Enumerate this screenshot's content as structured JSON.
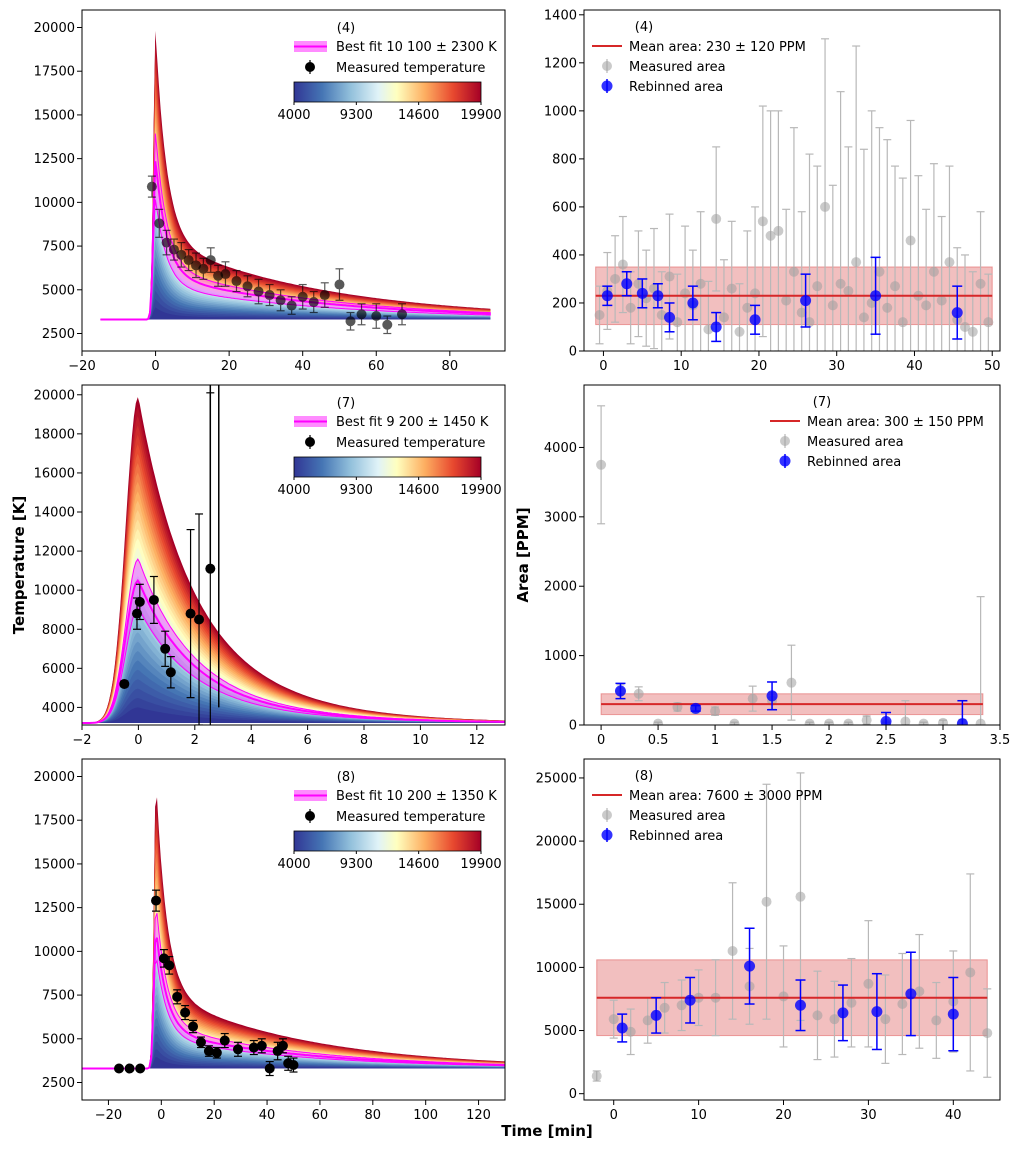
{
  "figure": {
    "shared_xlabel": "Time [min]",
    "left_ylabel": "Temperature [K]",
    "right_ylabel": "Area [PPM]",
    "colorbar": {
      "ticks": [
        "4000",
        "9300",
        "14600",
        "19900"
      ]
    }
  },
  "colors": {
    "magenta": "#ff00ff",
    "mean_line": "#d62728",
    "band": "#e88a8a",
    "measured_area": "#9e9e9e",
    "rebinned": "#0000ff",
    "errbar_gray": "#b8b8b8"
  },
  "chart_data": [
    {
      "id": "temp4",
      "type": "scatter",
      "panel_label": "(4)",
      "legend": {
        "fit": "Best fit 10 100 ± 2300 K",
        "measured": "Measured temperature"
      },
      "xlim": [
        -20,
        95
      ],
      "ylim": [
        1500,
        21000
      ],
      "xticks": [
        -20,
        0,
        20,
        40,
        60,
        80
      ],
      "yticks": [
        2500,
        5000,
        7500,
        10000,
        12500,
        15000,
        17500,
        20000
      ],
      "model": {
        "t0": 0,
        "t_start": -15,
        "t_end": 91,
        "base": 3300,
        "peak_max": 19900,
        "peak_min": 4000,
        "rise": 0.6,
        "tau1": 3,
        "tau2": 45,
        "frac": 0.28,
        "fit_peak": 12400,
        "fit_hi": 14000,
        "fit_lo": 10200
      },
      "points": {
        "x": [
          -1,
          1,
          3,
          5,
          7,
          9,
          11,
          13,
          15,
          17,
          19,
          22,
          25,
          28,
          31,
          34,
          37,
          40,
          43,
          46,
          50,
          53,
          56,
          60,
          63,
          67
        ],
        "y": [
          10900,
          8800,
          7700,
          7300,
          7000,
          6700,
          6400,
          6200,
          6700,
          5800,
          5900,
          5500,
          5200,
          4900,
          4700,
          4400,
          4100,
          4600,
          4300,
          4700,
          5300,
          3200,
          3600,
          3500,
          3000,
          3600
        ],
        "err": [
          600,
          800,
          700,
          600,
          700,
          600,
          700,
          600,
          700,
          600,
          700,
          600,
          600,
          700,
          600,
          600,
          500,
          700,
          600,
          700,
          900,
          500,
          600,
          700,
          500,
          600
        ]
      },
      "opacity": 0.65
    },
    {
      "id": "area4",
      "type": "scatter",
      "panel_label": "(4)",
      "legend": {
        "mean": "Mean area: 230 ± 120 PPM",
        "measured": "Measured area",
        "rebinned": "Rebinned area"
      },
      "xlim": [
        -2.5,
        51
      ],
      "ylim": [
        0,
        1420
      ],
      "xticks": [
        0,
        10,
        20,
        30,
        40,
        50
      ],
      "yticks": [
        0,
        200,
        400,
        600,
        800,
        1000,
        1200,
        1400
      ],
      "mean": 230,
      "band": [
        110,
        350
      ],
      "mean_x": [
        -1,
        50
      ],
      "measured": {
        "x": [
          -0.5,
          0.5,
          1.5,
          2.5,
          3.5,
          4.5,
          5.5,
          6.5,
          7.5,
          8.5,
          9.5,
          10.5,
          11.5,
          12.5,
          13.5,
          14.5,
          15.5,
          16.5,
          17.5,
          18.5,
          19.5,
          20.5,
          21.5,
          22.5,
          23.5,
          24.5,
          25.5,
          26.5,
          27.5,
          28.5,
          29.5,
          30.5,
          31.5,
          32.5,
          33.5,
          34.5,
          35.5,
          36.5,
          37.5,
          38.5,
          39.5,
          40.5,
          41.5,
          42.5,
          43.5,
          44.5,
          45.5,
          46.5,
          47.5,
          48.5,
          49.5
        ],
        "y": [
          150,
          250,
          300,
          360,
          180,
          280,
          220,
          260,
          150,
          310,
          120,
          240,
          190,
          280,
          90,
          550,
          140,
          260,
          80,
          180,
          240,
          540,
          480,
          500,
          210,
          330,
          160,
          120,
          270,
          600,
          190,
          280,
          250,
          370,
          140,
          200,
          330,
          180,
          270,
          120,
          460,
          230,
          190,
          330,
          210,
          370,
          130,
          100,
          80,
          280,
          120
        ],
        "err": [
          120,
          160,
          180,
          200,
          150,
          220,
          200,
          250,
          180,
          260,
          200,
          280,
          230,
          300,
          200,
          300,
          240,
          280,
          200,
          320,
          360,
          480,
          520,
          500,
          380,
          600,
          420,
          700,
          500,
          700,
          500,
          800,
          600,
          900,
          700,
          800,
          600,
          700,
          500,
          600,
          500,
          500,
          400,
          450,
          350,
          400,
          300,
          300,
          250,
          300,
          200
        ]
      },
      "rebinned": {
        "x": [
          0.5,
          3,
          5,
          7,
          8.5,
          11.5,
          14.5,
          19.5,
          26,
          35,
          45.5
        ],
        "y": [
          230,
          280,
          240,
          230,
          140,
          200,
          100,
          130,
          210,
          230,
          160
        ],
        "err": [
          40,
          50,
          60,
          50,
          60,
          70,
          60,
          60,
          110,
          160,
          110
        ]
      }
    },
    {
      "id": "temp7",
      "type": "scatter",
      "panel_label": "(7)",
      "legend": {
        "fit": "Best fit 9 200 ± 1450 K",
        "measured": "Measured temperature"
      },
      "xlim": [
        -2,
        13
      ],
      "ylim": [
        3100,
        20500
      ],
      "xticks": [
        -2,
        0,
        2,
        4,
        6,
        8,
        10,
        12
      ],
      "yticks": [
        4000,
        6000,
        8000,
        10000,
        12000,
        14000,
        16000,
        18000,
        20000
      ],
      "model": {
        "t0": 0,
        "t_start": -2,
        "t_end": 13,
        "base": 3200,
        "peak_max": 19900,
        "peak_min": 4000,
        "rise": 0.45,
        "tau1": 1.6,
        "tau2": 3.2,
        "frac": 0.45,
        "fit_peak": 10500,
        "fit_hi": 11600,
        "fit_lo": 9100
      },
      "points": {
        "x": [
          -0.5,
          -0.05,
          0.05,
          0.55,
          0.95,
          1.15,
          1.85,
          2.15,
          2.55
        ],
        "y": [
          5200,
          8800,
          9400,
          9500,
          7000,
          5800,
          8800,
          8500,
          11100
        ],
        "err": [
          150,
          800,
          900,
          1200,
          900,
          800,
          4300,
          5400,
          9000
        ]
      },
      "big_errbar": {
        "x": [
          2.55,
          2.85
        ],
        "y": [
          11100,
          4000
        ]
      },
      "opacity": 1
    },
    {
      "id": "area7",
      "type": "scatter",
      "panel_label": "(7)",
      "legend": {
        "mean": "Mean area: 300 ± 150 PPM",
        "measured": "Measured area",
        "rebinned": "Rebinned area"
      },
      "xlim": [
        -0.15,
        3.5
      ],
      "ylim": [
        0,
        4900
      ],
      "xticks": [
        0.0,
        0.5,
        1.0,
        1.5,
        2.0,
        2.5,
        3.0,
        3.5
      ],
      "yticks": [
        0,
        1000,
        2000,
        3000,
        4000
      ],
      "mean": 300,
      "band": [
        150,
        450
      ],
      "mean_x": [
        0,
        3.35
      ],
      "measured": {
        "x": [
          0,
          0.17,
          0.33,
          0.5,
          0.67,
          0.83,
          1.0,
          1.17,
          1.33,
          1.5,
          1.67,
          1.83,
          2.0,
          2.17,
          2.33,
          2.5,
          2.67,
          2.83,
          3.0,
          3.17,
          3.33
        ],
        "y": [
          3750,
          480,
          450,
          20,
          260,
          230,
          200,
          20,
          380,
          350,
          610,
          20,
          20,
          20,
          70,
          20,
          50,
          20,
          30,
          20,
          20
        ],
        "err": [
          850,
          100,
          100,
          20,
          60,
          60,
          60,
          20,
          180,
          120,
          540,
          20,
          20,
          20,
          60,
          20,
          300,
          20,
          40,
          60,
          1830
        ]
      },
      "rebinned": {
        "x": [
          0.17,
          0.83,
          1.5,
          2.5,
          3.17
        ],
        "y": [
          490,
          240,
          420,
          50,
          20
        ],
        "err": [
          110,
          40,
          200,
          130,
          330
        ]
      }
    },
    {
      "id": "temp8",
      "type": "scatter",
      "panel_label": "(8)",
      "legend": {
        "fit": "Best fit 10 200 ± 1350 K",
        "measured": "Measured temperature"
      },
      "xlim": [
        -30,
        130
      ],
      "ylim": [
        1500,
        21000
      ],
      "xticks": [
        -20,
        0,
        20,
        40,
        60,
        80,
        100,
        120
      ],
      "yticks": [
        2500,
        5000,
        7500,
        10000,
        12500,
        15000,
        17500,
        20000
      ],
      "model": {
        "t0": -2,
        "t_start": -30,
        "t_end": 130,
        "base": 3300,
        "peak_max": 19900,
        "peak_min": 4000,
        "rise": 0.8,
        "tau1": 4,
        "tau2": 55,
        "frac": 0.27,
        "fit_peak": 11300,
        "fit_hi": 12800,
        "fit_lo": 9900
      },
      "points": {
        "x": [
          -16,
          -12,
          -8,
          -2,
          1,
          3,
          6,
          9,
          12,
          15,
          18,
          21,
          24,
          29,
          35,
          38,
          41,
          44,
          46,
          48,
          50
        ],
        "y": [
          3300,
          3300,
          3300,
          12900,
          9600,
          9200,
          7400,
          6500,
          5700,
          4800,
          4300,
          4200,
          4900,
          4400,
          4500,
          4600,
          3300,
          4300,
          4600,
          3600,
          3500
        ],
        "err": [
          120,
          120,
          120,
          600,
          500,
          500,
          400,
          400,
          350,
          300,
          300,
          300,
          400,
          400,
          400,
          400,
          400,
          500,
          400,
          400,
          400
        ]
      },
      "opacity": 1
    },
    {
      "id": "area8",
      "type": "scatter",
      "panel_label": "(8)",
      "legend": {
        "mean": "Mean area: 7600 ± 3000 PPM",
        "measured": "Measured area",
        "rebinned": "Rebinned area"
      },
      "xlim": [
        -3.5,
        45.5
      ],
      "ylim": [
        -500,
        26500
      ],
      "xticks": [
        0,
        10,
        20,
        30,
        40
      ],
      "yticks": [
        0,
        5000,
        10000,
        15000,
        20000,
        25000
      ],
      "mean": 7600,
      "band": [
        4600,
        10600
      ],
      "mean_x": [
        -2,
        44
      ],
      "measured": {
        "x": [
          -2,
          0,
          2,
          4,
          6,
          8,
          10,
          12,
          14,
          16,
          18,
          20,
          22,
          24,
          26,
          28,
          30,
          32,
          34,
          36,
          38,
          40,
          42,
          44
        ],
        "y": [
          1400,
          5900,
          4900,
          5800,
          6800,
          7000,
          7600,
          7600,
          11300,
          8500,
          15200,
          7700,
          15600,
          6200,
          5900,
          7200,
          8700,
          5900,
          7100,
          8100,
          5800,
          7300,
          9600,
          4800
        ],
        "err": [
          400,
          1500,
          1800,
          1800,
          2000,
          2000,
          2200,
          3000,
          5400,
          3000,
          9300,
          4000,
          9800,
          3500,
          3000,
          3500,
          5000,
          3500,
          4000,
          4500,
          3000,
          4000,
          7800,
          3500
        ]
      },
      "rebinned": {
        "x": [
          1,
          5,
          9,
          16,
          22,
          27,
          31,
          35,
          40
        ],
        "y": [
          5200,
          6200,
          7400,
          10100,
          7000,
          6400,
          6500,
          7900,
          6300
        ],
        "err": [
          1100,
          1400,
          1800,
          3000,
          2000,
          2200,
          3000,
          3300,
          2900
        ]
      }
    }
  ]
}
